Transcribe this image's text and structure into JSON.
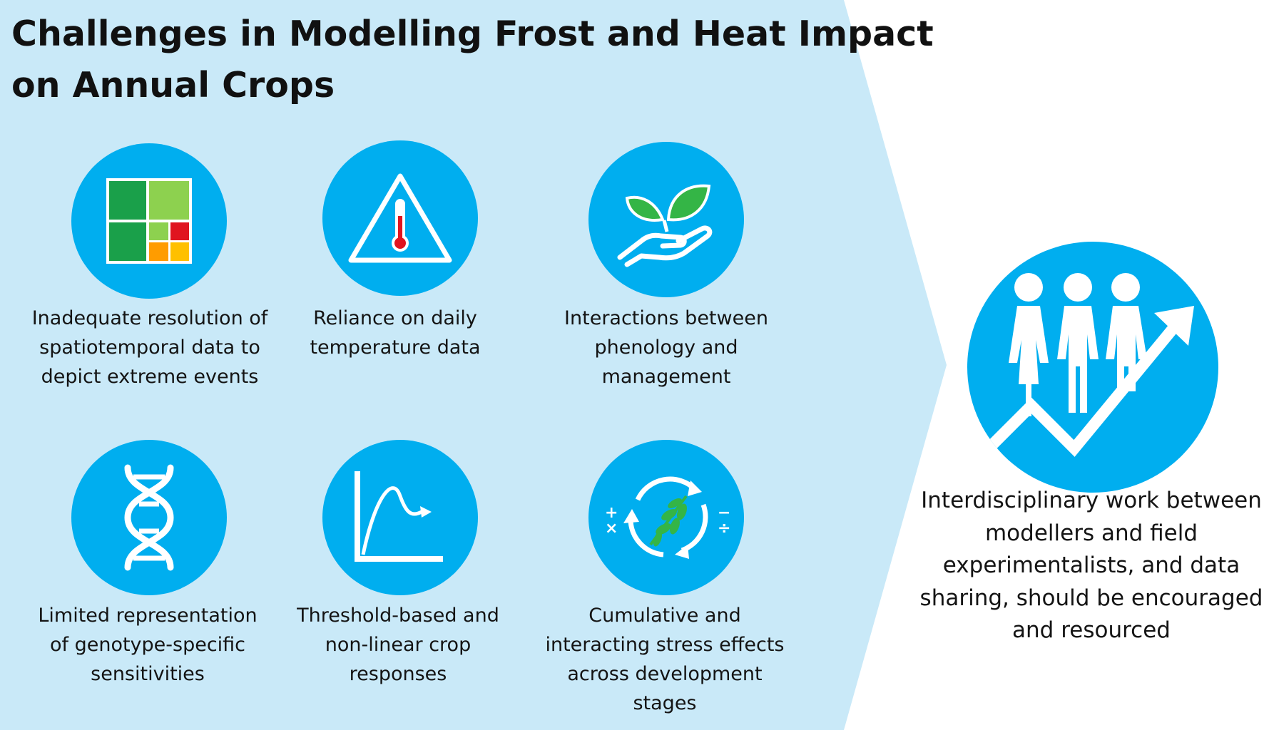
{
  "title_lines": [
    "Challenges in Modelling Frost and Heat Impact",
    "on Annual Crops"
  ],
  "colors": {
    "panel_bg": "#c9e9f8",
    "icon_circle": "#00aeef",
    "icon_white": "#ffffff",
    "green_dark": "#1aa04a",
    "green_light": "#8dd14f",
    "red": "#e0141f",
    "orange": "#ff9c00",
    "yellow": "#ffc000",
    "leaf_green": "#34b546"
  },
  "challenges": [
    {
      "icon": "grid-map-icon",
      "lines": [
        "Inadequate resolution of",
        "spatiotemporal data to",
        "depict extreme events"
      ]
    },
    {
      "icon": "thermometer-warning-icon",
      "lines": [
        "Reliance on daily",
        "temperature data"
      ]
    },
    {
      "icon": "hand-seedling-icon",
      "lines": [
        "Interactions between",
        "phenology and",
        "management"
      ]
    },
    {
      "icon": "dna-icon",
      "lines": [
        "Limited representation",
        "of genotype-specific",
        "sensitivities"
      ]
    },
    {
      "icon": "threshold-curve-icon",
      "lines": [
        "Threshold-based and",
        "non-linear crop",
        "responses"
      ]
    },
    {
      "icon": "cycle-arrows-plant-icon",
      "lines": [
        "Cumulative and",
        "interacting stress effects",
        "across development",
        "stages"
      ]
    }
  ],
  "outcome": {
    "icon": "people-growth-icon",
    "lines": [
      "Interdisciplinary work between",
      "modellers and field",
      "experimentalists, and data",
      "sharing, should be encouraged",
      "and resourced"
    ]
  }
}
